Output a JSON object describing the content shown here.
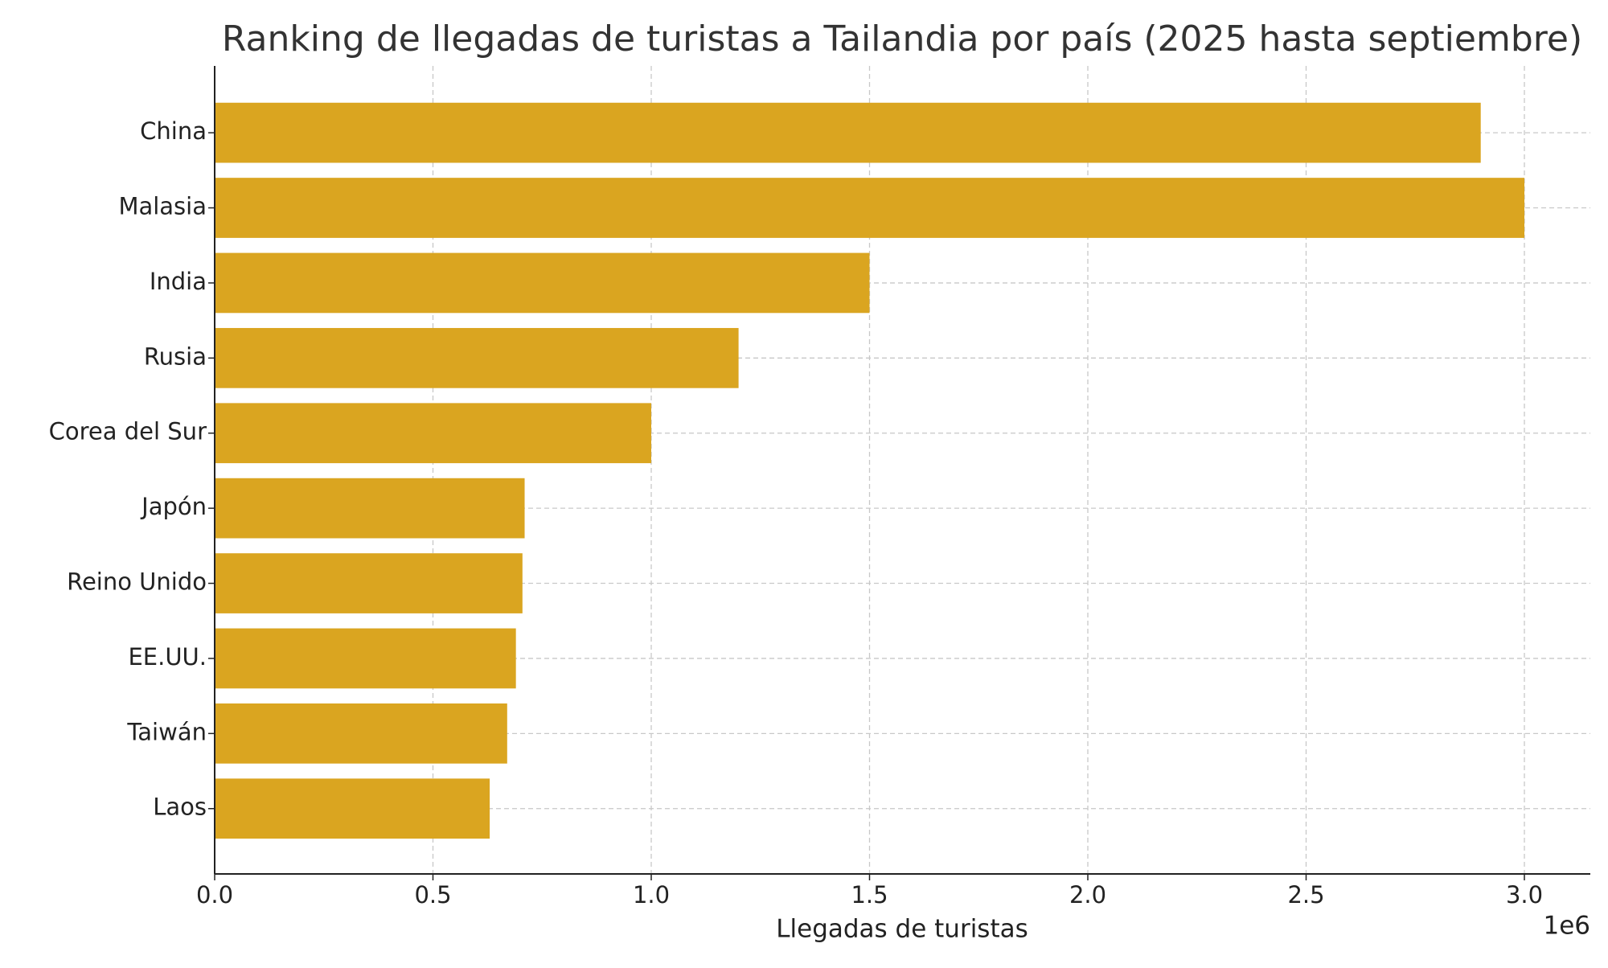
{
  "chart_data": {
    "type": "barh",
    "title": "Ranking de llegadas de turistas a Tailandia por país (2025 hasta septiembre)",
    "x_label": "Llegadas de turistas",
    "offset_label": "1e6",
    "categories": [
      "China",
      "Malasia",
      "India",
      "Rusia",
      "Corea del Sur",
      "Japón",
      "Reino Unido",
      "EE.UU.",
      "Taiwán",
      "Laos"
    ],
    "values": [
      2900000,
      3000000,
      1500000,
      1200000,
      1000000,
      710000,
      705000,
      690000,
      670000,
      630000
    ],
    "color": "#daa520",
    "xlim": [
      0,
      3151000
    ],
    "xticks": [
      {
        "value": 0,
        "label": "0.0"
      },
      {
        "value": 500000,
        "label": "0.5"
      },
      {
        "value": 1000000,
        "label": "1.0"
      },
      {
        "value": 1500000,
        "label": "1.5"
      },
      {
        "value": 2000000,
        "label": "2.0"
      },
      {
        "value": 2500000,
        "label": "2.5"
      },
      {
        "value": 3000000,
        "label": "3.0"
      }
    ],
    "grid": true
  }
}
